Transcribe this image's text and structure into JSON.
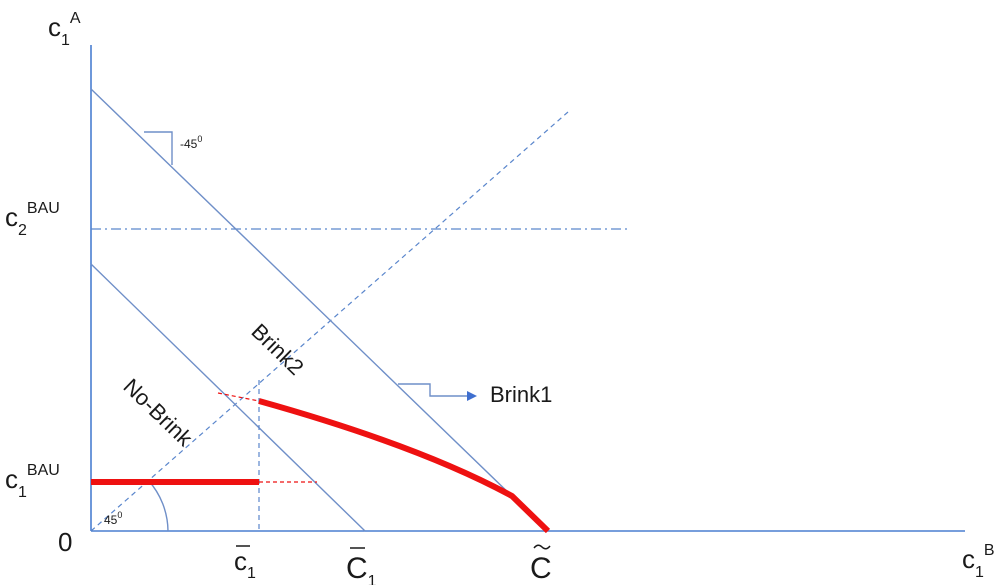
{
  "axes": {
    "y_label": "c",
    "y_sub": "1",
    "y_sup": "A",
    "x_label": "c",
    "x_sub": "1",
    "x_sup": "B",
    "origin": "0"
  },
  "y_ticks": {
    "c2bau": {
      "base": "c",
      "sub": "2",
      "sup": "BAU"
    },
    "c1bau": {
      "base": "c",
      "sub": "1",
      "sup": "BAU"
    }
  },
  "x_ticks": {
    "cbar": {
      "base": "c",
      "sub": "1"
    },
    "cunder": {
      "base": "C",
      "sub": "1"
    },
    "ctilde": {
      "base": "C"
    }
  },
  "annotations": {
    "slope": "-45",
    "slope_sup": "0",
    "angle": "45",
    "angle_sup": "0",
    "brink1": "Brink1",
    "brink2": "Brink2",
    "nobrink": "No-Brink"
  },
  "colors": {
    "axis": "#4a7fd0",
    "line": "#6f8fc8",
    "path": "#ee1111",
    "arrow": "#3f6fcf"
  }
}
